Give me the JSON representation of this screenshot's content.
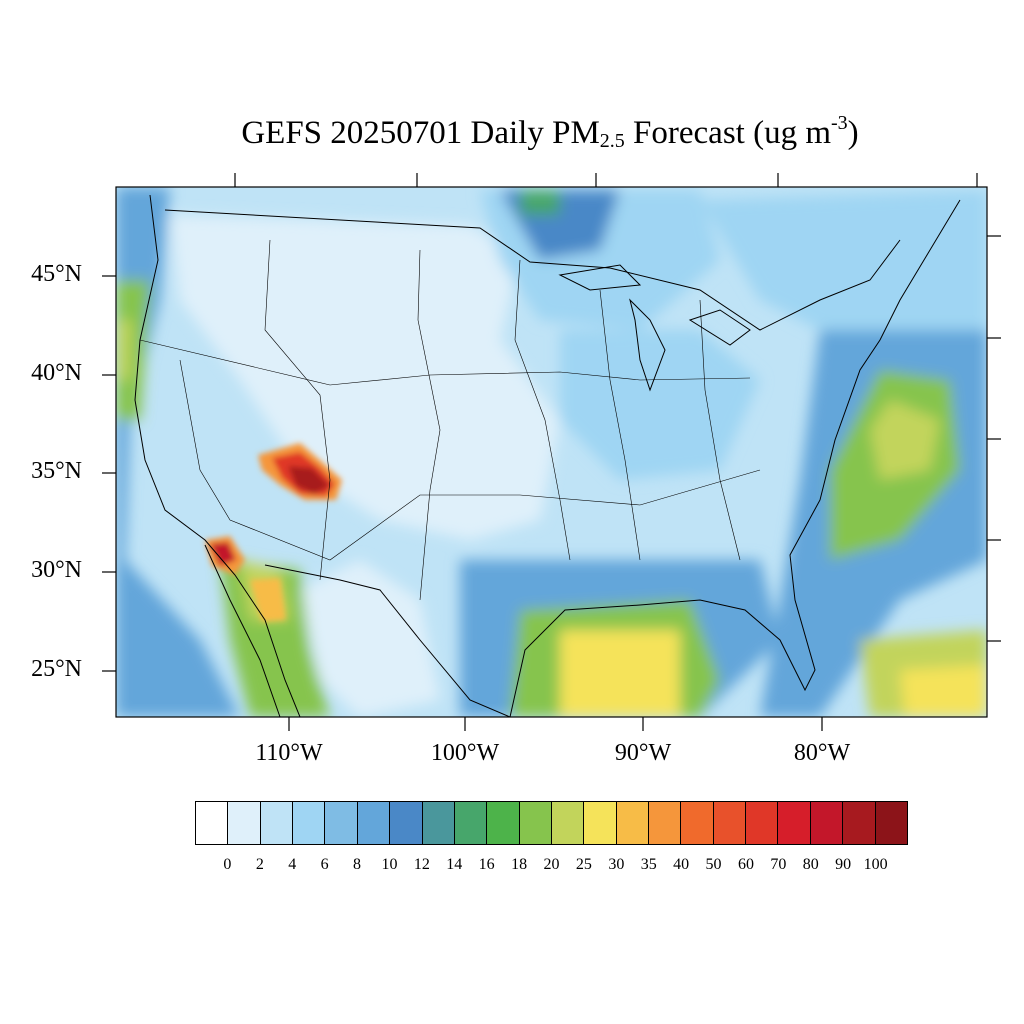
{
  "map": {
    "title_prefix": "GEFS 20250701 Daily PM",
    "title_subscript": "2.5",
    "title_suffix": " Forecast (ug m",
    "title_superscript": "-3",
    "title_end": ")",
    "lat_labels": [
      "45°N",
      "40°N",
      "35°N",
      "30°N",
      "25°N"
    ],
    "lon_labels": [
      "110°W",
      "100°W",
      "90°W",
      "80°W"
    ],
    "colorbar_levels": [
      "0",
      "2",
      "4",
      "6",
      "8",
      "10",
      "12",
      "14",
      "16",
      "18",
      "20",
      "25",
      "30",
      "35",
      "40",
      "50",
      "60",
      "70",
      "80",
      "90",
      "100"
    ],
    "colorbar_colors": [
      "#ffffff",
      "#dff0fa",
      "#bfe3f6",
      "#9fd5f3",
      "#7fbce4",
      "#63a6da",
      "#4a88c7",
      "#4a979c",
      "#47a66b",
      "#4db34a",
      "#86c44d",
      "#c2d45b",
      "#f5e35a",
      "#f7bc47",
      "#f5963b",
      "#f06a2c",
      "#e8512b",
      "#e03728",
      "#d61e2a",
      "#c3172a",
      "#a71a1f",
      "#8c1419"
    ]
  }
}
